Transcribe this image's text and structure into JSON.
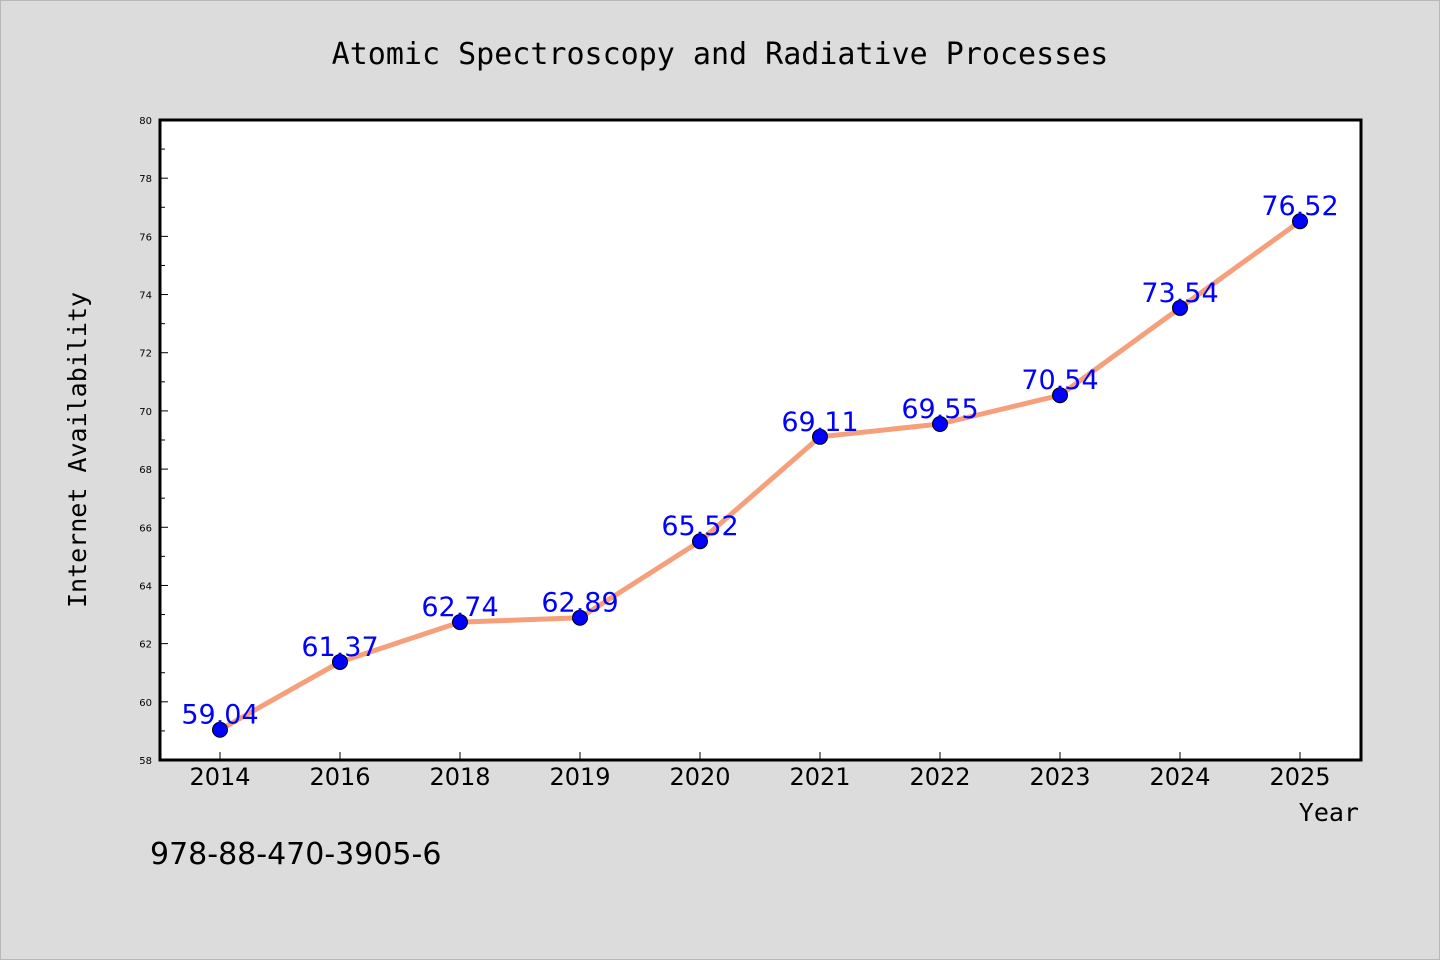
{
  "figure_note": "978-88-470-3905-6",
  "colors": {
    "background": "#dcdcdc",
    "plot_area": "#ffffff",
    "line": "#f5a07a",
    "marker": "#0000ff",
    "data_label": "#0000ff"
  },
  "chart_data": {
    "type": "line",
    "title": "Atomic Spectroscopy and Radiative Processes",
    "xlabel": "Year",
    "ylabel": "Internet Availability",
    "categories": [
      "2014",
      "2016",
      "2018",
      "2019",
      "2020",
      "2021",
      "2022",
      "2023",
      "2024",
      "2025"
    ],
    "series": [
      {
        "values": [
          59.04,
          61.37,
          62.74,
          62.89,
          65.52,
          69.11,
          69.55,
          70.54,
          73.54,
          76.52
        ],
        "labels": [
          "59.04",
          "61.37",
          "62.74",
          "62.89",
          "65.52",
          "69.11",
          "69.55",
          "70.54",
          "73.54",
          "76.52"
        ]
      }
    ],
    "ylim": [
      58,
      80
    ],
    "yticks": [
      "58",
      "60",
      "62",
      "64",
      "66",
      "68",
      "70",
      "72",
      "74",
      "76",
      "78",
      "80"
    ],
    "grid": false,
    "legend": "none"
  }
}
